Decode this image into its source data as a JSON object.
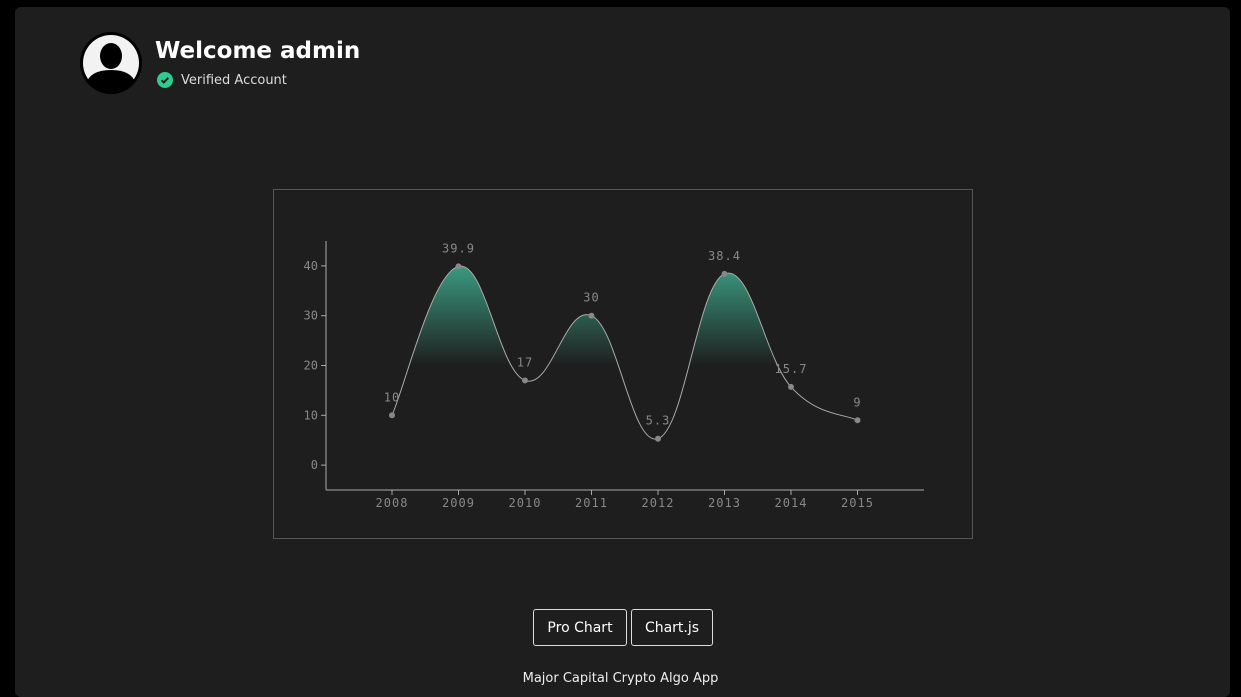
{
  "header": {
    "title": "Welcome admin",
    "status": "Verified Account",
    "accent": "#2ecc8f"
  },
  "buttons": {
    "pro_chart": "Pro Chart",
    "chartjs": "Chart.js"
  },
  "footer": "Major Capital Crypto Algo App",
  "chart_data": {
    "type": "line",
    "categories": [
      "2008",
      "2009",
      "2010",
      "2011",
      "2012",
      "2013",
      "2014",
      "2015"
    ],
    "values": [
      10,
      39.9,
      17,
      30,
      5.3,
      38.4,
      15.7,
      9
    ],
    "labels": [
      "10",
      "39.9",
      "17",
      "30",
      "5.3",
      "38.4",
      "15.7",
      "9"
    ],
    "yticks": [
      "0",
      "10",
      "20",
      "30",
      "40"
    ],
    "ylim": [
      -5,
      45
    ],
    "fill_threshold": 20,
    "colors": {
      "line": "#aaaaaa",
      "fill": "#3a9a80",
      "point": "#888888"
    }
  }
}
